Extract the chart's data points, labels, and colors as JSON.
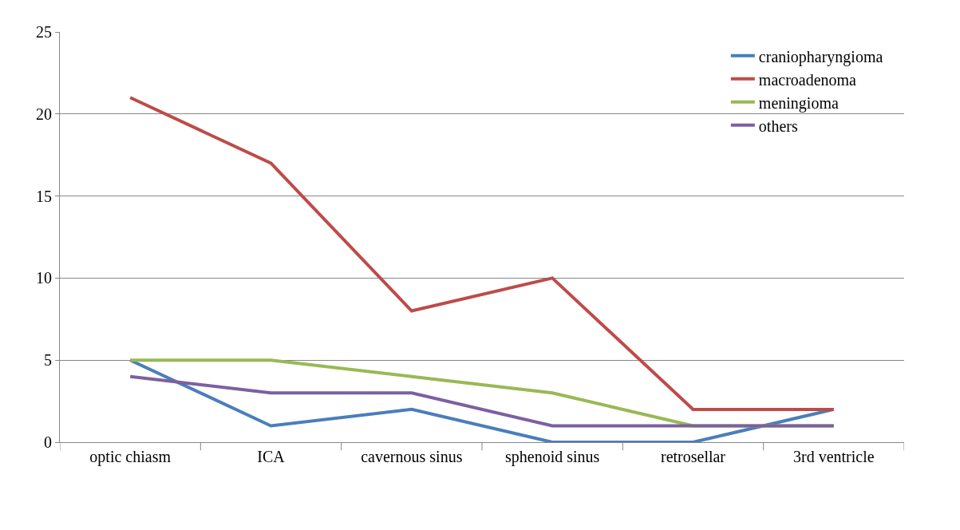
{
  "chart_data": {
    "type": "line",
    "categories": [
      "optic chiasm",
      "ICA",
      "cavernous sinus",
      "sphenoid sinus",
      "retrosellar",
      "3rd ventricle"
    ],
    "series": [
      {
        "name": "craniopharyngioma",
        "color": "#4a7ebb",
        "values": [
          5,
          1,
          2,
          0,
          0,
          2
        ]
      },
      {
        "name": "macroadenoma",
        "color": "#be4b48",
        "values": [
          21,
          17,
          8,
          10,
          2,
          2
        ]
      },
      {
        "name": "meningioma",
        "color": "#98b954",
        "values": [
          5,
          5,
          4,
          3,
          1,
          1
        ]
      },
      {
        "name": "others",
        "color": "#7d60a0",
        "values": [
          4,
          3,
          3,
          1,
          1,
          1
        ]
      }
    ],
    "ylim": [
      0,
      25
    ],
    "yticks": [
      0,
      5,
      10,
      15,
      20,
      25
    ],
    "grid": "y",
    "legend": "top right",
    "marker": "none",
    "line_style": "solid"
  }
}
